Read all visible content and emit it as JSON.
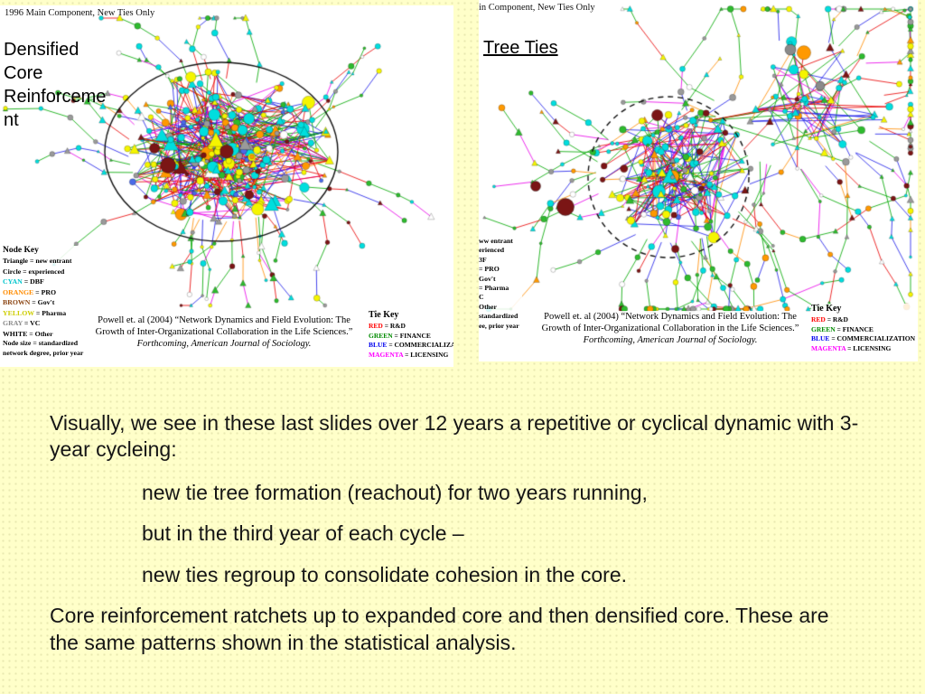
{
  "slide": {
    "background": "#FFFFC9"
  },
  "left_panel": {
    "header": "1996 Main Component, New Ties Only",
    "label": "Densified Core Reinforcement",
    "node_key": {
      "title": "Node Key",
      "entries": [
        {
          "term": "Triangle",
          "def": " = new entrant",
          "color": "#000000"
        },
        {
          "term": "Circle",
          "def": " = experienced",
          "color": "#000000"
        },
        {
          "term": "CYAN",
          "def": " = DBF",
          "color": "#00C5CD"
        },
        {
          "term": "ORANGE",
          "def": " = PRO",
          "color": "#FF8C00"
        },
        {
          "term": "BROWN",
          "def": " = Gov't",
          "color": "#8B4513"
        },
        {
          "term": "YELLOW",
          "def": " = Pharma",
          "color": "#CDCD00"
        },
        {
          "term": "GRAY",
          "def": " = VC",
          "color": "#8A8A8A"
        },
        {
          "term": "WHITE",
          "def": " = Other",
          "color": "#000000"
        },
        {
          "term": "Node size",
          "def": " = standardized network degree, prior year",
          "color": "#000000"
        }
      ]
    }
  },
  "right_panel": {
    "header": "in Component, New Ties Only",
    "label": "Tree Ties",
    "node_key_fragments": [
      "ww entrant",
      "erienced",
      "3F",
      "= PRO",
      "Gov't",
      "= Pharma",
      "C",
      "Other",
      "standardized",
      "ee, prior year"
    ]
  },
  "citation": {
    "main": "Powell et. al (2004) “Network Dynamics and Field Evolution: The Growth of Inter-Organizational Collaboration in the Life Sciences.” ",
    "italic": "Forthcoming, American Journal of Sociology."
  },
  "tie_key": {
    "title": "Tie Key",
    "entries": [
      {
        "term": "RED",
        "def": " = R&D",
        "color": "#FF0000"
      },
      {
        "term": "GREEN",
        "def": " = FINANCE",
        "color": "#008B00"
      },
      {
        "term": "BLUE",
        "def": " = COMMERCIALIZATION",
        "color": "#0000EE"
      },
      {
        "term": "MAGENTA",
        "def": " = LICENSING",
        "color": "#FF00FF"
      }
    ]
  },
  "body": {
    "intro": "Visually, we see in these last slides over 12 years a repetitive or cyclical dynamic with 3-year cycleing:",
    "bullets": [
      "new tie tree formation (reachout) for two years running,",
      "but in the third year of each cycle –",
      "new ties regroup to consolidate cohesion in the core."
    ],
    "conclusion": "Core reinforcement ratchets up to expanded core and then densified core. These are the same patterns shown in the statistical analysis."
  },
  "network": {
    "edge_colors": {
      "rd_red": "#E80000",
      "finance_green": "#00A800",
      "commercialization_blue": "#2020E8",
      "licensing_magenta": "#E800E8",
      "orange": "#FF8C00"
    },
    "node_colors": {
      "dbf_cyan": "#00DEDE",
      "pharma_yellow": "#F5F500",
      "pro_orange": "#FF9900",
      "vc_gray": "#9A9A9A",
      "govt_brown": "#7B1515",
      "other_white": "#FFFFFF",
      "entrant_green": "#2EBB2E",
      "blue_node": "#4A6AE8"
    }
  }
}
